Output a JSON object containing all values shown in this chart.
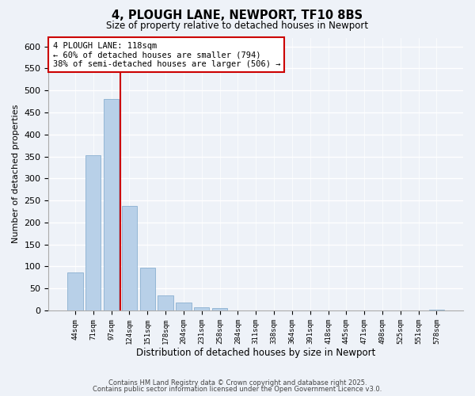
{
  "title": "4, PLOUGH LANE, NEWPORT, TF10 8BS",
  "subtitle": "Size of property relative to detached houses in Newport",
  "xlabel": "Distribution of detached houses by size in Newport",
  "ylabel": "Number of detached properties",
  "bar_color": "#b8d0e8",
  "bar_edge_color": "#8ab0d0",
  "categories": [
    "44sqm",
    "71sqm",
    "97sqm",
    "124sqm",
    "151sqm",
    "178sqm",
    "204sqm",
    "231sqm",
    "258sqm",
    "284sqm",
    "311sqm",
    "338sqm",
    "364sqm",
    "391sqm",
    "418sqm",
    "445sqm",
    "471sqm",
    "498sqm",
    "525sqm",
    "551sqm",
    "578sqm"
  ],
  "values": [
    86,
    352,
    481,
    238,
    97,
    35,
    18,
    8,
    5,
    0,
    0,
    0,
    0,
    0,
    0,
    0,
    0,
    0,
    0,
    0,
    2
  ],
  "vline_x": 2.5,
  "vline_color": "#cc0000",
  "annotation_title": "4 PLOUGH LANE: 118sqm",
  "annotation_line1": "← 60% of detached houses are smaller (794)",
  "annotation_line2": "38% of semi-detached houses are larger (506) →",
  "ylim": [
    0,
    620
  ],
  "yticks": [
    0,
    50,
    100,
    150,
    200,
    250,
    300,
    350,
    400,
    450,
    500,
    550,
    600
  ],
  "footnote1": "Contains HM Land Registry data © Crown copyright and database right 2025.",
  "footnote2": "Contains public sector information licensed under the Open Government Licence v3.0.",
  "bg_color": "#eef2f8"
}
